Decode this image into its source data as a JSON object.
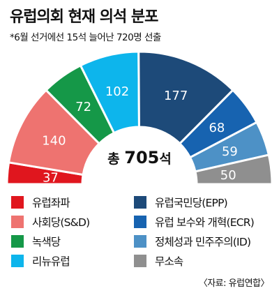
{
  "title": "유럽의회 현재 의석 분포",
  "subtitle": "*6월 선거에선 15석 늘어난 720명 선출",
  "source": "〈자료: 유럽연합〉",
  "chart_data": {
    "type": "pie",
    "variant": "parliament-half-donut",
    "title": "유럽의회 현재 의석 분포",
    "subtitle": "*6월 선거에선 15석 늘어난 720명 선출",
    "total": 705,
    "center_label_prefix": "총",
    "center_label_value": "705",
    "center_label_suffix": "석",
    "series": [
      {
        "name": "유럽좌파",
        "value": 37,
        "color": "#e0161e"
      },
      {
        "name": "사회당(S&D)",
        "value": 140,
        "color": "#ee7370"
      },
      {
        "name": "녹색당",
        "value": 72,
        "color": "#159848"
      },
      {
        "name": "리뉴유럽",
        "value": 102,
        "color": "#0db5ec"
      },
      {
        "name": "유럽국민당(EPP)",
        "value": 177,
        "color": "#1d4a79"
      },
      {
        "name": "유럽 보수와 개혁(ECR)",
        "value": 68,
        "color": "#1763b0"
      },
      {
        "name": "정체성과 민주주의(ID)",
        "value": 59,
        "color": "#4d91c6"
      },
      {
        "name": "무소속",
        "value": 50,
        "color": "#8f8f8f"
      }
    ],
    "legend": {
      "placement": "bottom",
      "columns": [
        [
          "유럽좌파",
          "사회당(S&D)",
          "녹색당",
          "리뉴유럽"
        ],
        [
          "유럽국민당(EPP)",
          "유럽 보수와 개혁(ECR)",
          "정체성과 민주주의(ID)",
          "무소속"
        ]
      ]
    }
  }
}
